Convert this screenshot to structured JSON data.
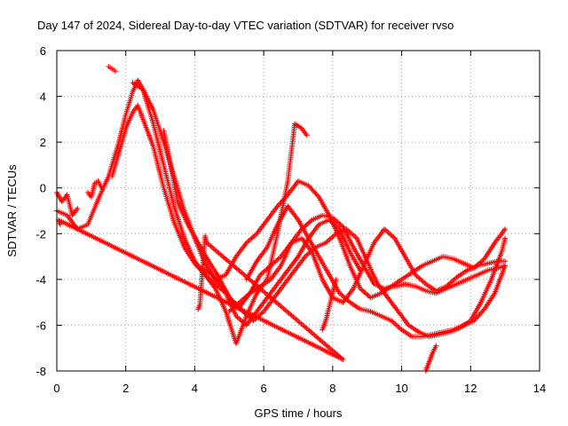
{
  "chart_data": {
    "type": "scatter",
    "title": "Day 147 of 2024, Sidereal Day-to-day VTEC variation (SDTVAR) for receiver rvso",
    "xlabel": "GPS time / hours",
    "ylabel": "SDTVAR / TECUs",
    "xlim": [
      0,
      14
    ],
    "ylim": [
      -8,
      6
    ],
    "xticks": [
      "0",
      "2",
      "4",
      "6",
      "8",
      "10",
      "12",
      "14"
    ],
    "yticks": [
      "-8",
      "-6",
      "-4",
      "-2",
      "0",
      "2",
      "4",
      "6"
    ],
    "grid": true,
    "marker": "+",
    "color": "#ff0000",
    "series": [
      {
        "name": "track-1",
        "x": [
          0.0,
          0.3,
          0.6,
          0.9,
          1.2,
          1.5,
          1.8,
          2.0,
          2.2,
          2.35,
          2.5,
          2.8,
          3.1,
          3.4,
          3.7,
          4.0,
          4.3,
          4.6,
          4.9,
          5.2,
          5.5,
          5.8,
          6.1,
          6.4,
          6.7,
          6.9,
          7.1,
          7.25
        ],
        "y": [
          -1.0,
          -1.2,
          -1.8,
          -1.6,
          -0.5,
          0.5,
          2.0,
          3.2,
          4.2,
          4.7,
          4.3,
          2.8,
          1.0,
          -0.8,
          -2.2,
          -3.2,
          -3.8,
          -4.4,
          -5.4,
          -6.8,
          -5.6,
          -4.6,
          -4.0,
          -2.0,
          0.3,
          2.8,
          2.6,
          2.3
        ]
      },
      {
        "name": "track-2",
        "x": [
          1.6,
          1.8,
          2.0,
          2.2,
          2.35,
          2.5,
          2.8,
          3.1,
          3.4,
          3.7,
          4.0,
          4.3,
          4.6,
          4.9,
          5.2,
          5.5,
          5.8,
          6.1,
          6.4,
          6.7,
          7.0,
          7.3,
          7.6,
          7.9,
          8.2,
          8.5,
          8.8
        ],
        "y": [
          0.5,
          1.5,
          2.6,
          3.3,
          3.6,
          3.0,
          1.8,
          0.0,
          -1.5,
          -2.6,
          -3.3,
          -3.8,
          -4.2,
          -4.6,
          -5.6,
          -6.0,
          -5.4,
          -4.8,
          -4.2,
          -3.6,
          -3.0,
          -2.2,
          -1.6,
          -1.4,
          -1.8,
          -2.8,
          -3.6
        ]
      },
      {
        "name": "track-3",
        "x": [
          2.2,
          2.5,
          2.8,
          3.1,
          3.4,
          3.7,
          4.0,
          4.3,
          4.6,
          4.9,
          5.2,
          5.5,
          5.8,
          6.1,
          6.4,
          6.7,
          7.0,
          7.3,
          7.6,
          7.9,
          8.2,
          8.5,
          8.8,
          9.1,
          9.4,
          9.7,
          10.0,
          10.3,
          10.6,
          10.9,
          11.2,
          11.5,
          11.8,
          12.1,
          12.4,
          12.7,
          13.0
        ],
        "y": [
          4.6,
          4.3,
          3.4,
          2.0,
          0.5,
          -1.0,
          -2.2,
          -3.3,
          -4.0,
          -3.8,
          -3.0,
          -2.4,
          -2.0,
          -1.4,
          -0.8,
          -0.3,
          0.3,
          0.1,
          -0.4,
          -1.2,
          -2.2,
          -3.4,
          -4.4,
          -4.8,
          -4.6,
          -4.3,
          -4.0,
          -3.7,
          -3.4,
          -3.2,
          -3.0,
          -3.1,
          -3.3,
          -3.5,
          -3.1,
          -2.4,
          -1.8
        ]
      },
      {
        "name": "track-4",
        "x": [
          3.1,
          3.3,
          3.5,
          3.8,
          4.1,
          4.4,
          4.7,
          5.0,
          5.3,
          5.6,
          5.9,
          6.2,
          6.5,
          6.8,
          7.1,
          7.4,
          7.7,
          8.0,
          8.3,
          8.6,
          8.9,
          9.2,
          9.5,
          9.8,
          10.1,
          10.4,
          10.7,
          11.0,
          11.3,
          11.6,
          11.9,
          12.2,
          12.5,
          12.8,
          13.0
        ],
        "y": [
          2.5,
          1.0,
          -0.6,
          -1.6,
          -2.4,
          -3.2,
          -3.9,
          -4.8,
          -5.2,
          -4.6,
          -3.8,
          -3.4,
          -3.0,
          -2.4,
          -1.8,
          -1.4,
          -1.2,
          -1.3,
          -1.7,
          -2.6,
          -3.4,
          -4.2,
          -4.4,
          -4.3,
          -4.2,
          -4.3,
          -4.5,
          -4.6,
          -4.4,
          -4.2,
          -4.0,
          -3.8,
          -3.6,
          -3.5,
          -3.4
        ]
      },
      {
        "name": "track-5",
        "x": [
          4.2,
          4.5,
          4.8,
          5.1,
          5.4,
          5.7,
          6.0,
          6.3,
          6.6,
          6.9,
          7.2,
          7.5,
          7.8,
          8.1,
          8.4,
          8.7,
          9.0,
          9.3,
          9.6,
          9.9,
          10.2,
          10.5,
          10.8,
          11.1,
          11.4,
          11.7,
          12.0,
          12.3,
          12.6,
          12.9,
          13.0
        ],
        "y": [
          -3.5,
          -3.8,
          -4.3,
          -5.0,
          -5.4,
          -5.8,
          -5.4,
          -4.8,
          -4.2,
          -3.6,
          -3.0,
          -2.6,
          -2.4,
          -2.0,
          -1.8,
          -2.2,
          -3.2,
          -4.2,
          -4.8,
          -5.4,
          -6.0,
          -6.3,
          -6.5,
          -6.4,
          -6.3,
          -6.1,
          -5.8,
          -5.0,
          -4.0,
          -2.8,
          -2.2
        ]
      },
      {
        "name": "track-6",
        "x": [
          5.0,
          5.3,
          5.6,
          5.9,
          6.2,
          6.5,
          6.8,
          7.1,
          7.4,
          7.7,
          8.0,
          8.3,
          8.6,
          8.9,
          9.2,
          9.5,
          9.8,
          10.1,
          10.4,
          10.7,
          11.0,
          11.3,
          11.6,
          11.9,
          12.2,
          12.5,
          12.8,
          13.0
        ],
        "y": [
          -5.4,
          -5.0,
          -4.6,
          -4.3,
          -4.0,
          -3.4,
          -2.4,
          -2.2,
          -2.8,
          -4.0,
          -4.8,
          -5.0,
          -4.4,
          -3.4,
          -2.4,
          -1.8,
          -2.2,
          -3.0,
          -3.8,
          -4.2,
          -4.5,
          -4.3,
          -3.9,
          -3.6,
          -3.4,
          -3.3,
          -3.2,
          -3.2
        ]
      },
      {
        "name": "track-7",
        "x": [
          5.5,
          5.8,
          6.1,
          6.4,
          6.7,
          7.0,
          7.3,
          7.6,
          7.9,
          8.2,
          8.5,
          8.8,
          9.1,
          9.4,
          9.7,
          10.0,
          10.3,
          10.6,
          10.9,
          11.2,
          11.5,
          11.8,
          12.1,
          12.4,
          12.7,
          13.0
        ],
        "y": [
          -4.0,
          -3.2,
          -2.6,
          -1.6,
          -0.8,
          -1.4,
          -2.2,
          -3.0,
          -3.8,
          -4.6,
          -5.0,
          -5.3,
          -5.4,
          -5.6,
          -5.8,
          -6.2,
          -6.5,
          -6.5,
          -6.4,
          -6.3,
          -6.2,
          -6.0,
          -5.8,
          -5.3,
          -4.6,
          -3.4
        ]
      },
      {
        "name": "track-8",
        "x": [
          0.0,
          0.15,
          0.3,
          0.45,
          0.6
        ],
        "y": [
          -0.2,
          -0.6,
          -0.3,
          -1.2,
          -0.9
        ]
      },
      {
        "name": "track-9",
        "x": [
          0.9,
          1.0,
          1.1,
          1.2,
          1.3
        ],
        "y": [
          -0.2,
          -0.4,
          0.2,
          0.3,
          0.0
        ]
      },
      {
        "name": "track-10",
        "x": [
          1.5,
          1.6,
          1.7
        ],
        "y": [
          5.3,
          5.2,
          5.1
        ]
      },
      {
        "name": "track-11",
        "x": [
          7.7,
          7.8,
          7.9,
          8.0,
          8.1
        ],
        "y": [
          -6.2,
          -5.8,
          -5.2,
          -4.6,
          -4.0
        ]
      },
      {
        "name": "track-12",
        "x": [
          10.7,
          10.8,
          10.9,
          11.0
        ],
        "y": [
          -8.0,
          -7.6,
          -7.2,
          -6.9
        ]
      },
      {
        "name": "track-13",
        "x": [
          4.1,
          4.15,
          4.3,
          4.35,
          8.3,
          0.05,
          0.1
        ],
        "y": [
          -5.3,
          -5.1,
          -2.1,
          -2.4,
          -7.5,
          -1.4,
          -1.6
        ]
      }
    ]
  }
}
